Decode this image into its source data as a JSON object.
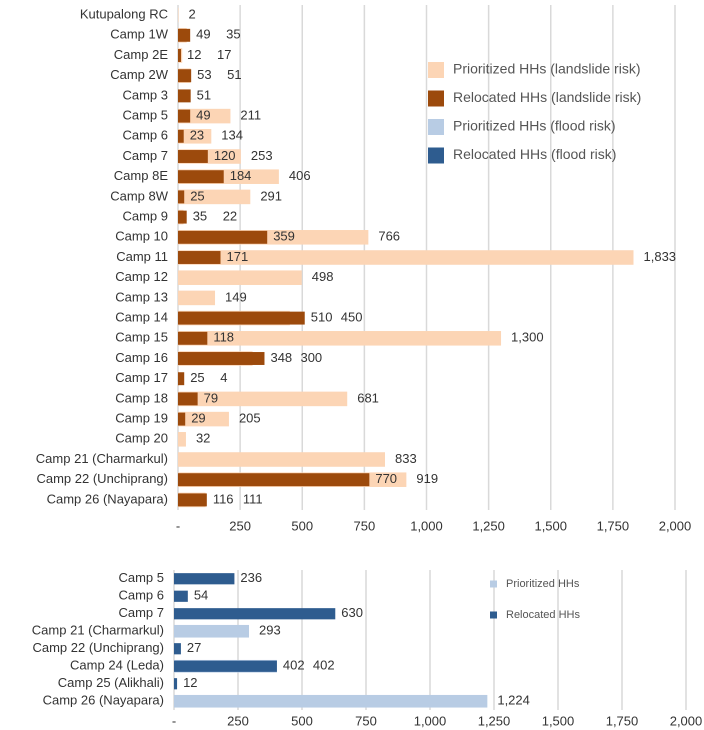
{
  "chart_data": [
    {
      "type": "bar",
      "categories": [
        "Kutupalong RC",
        "Camp 1W",
        "Camp 2E",
        "Camp 2W",
        "Camp 3",
        "Camp 5",
        "Camp 6",
        "Camp 7",
        "Camp 8E",
        "Camp 8W",
        "Camp 9",
        "Camp 10",
        "Camp 11",
        "Camp 12",
        "Camp 13",
        "Camp 14",
        "Camp 15",
        "Camp 16",
        "Camp 17",
        "Camp 18",
        "Camp 19",
        "Camp 20",
        "Camp 21 (Charmarkul)",
        "Camp 22 (Unchiprang)",
        "Camp 26 (Nayapara)"
      ],
      "series": [
        {
          "name": "Prioritized HHs (landslide risk)",
          "color": "#fcd5b5",
          "values": [
            2,
            35,
            17,
            51,
            null,
            211,
            134,
            253,
            406,
            291,
            22,
            766,
            1833,
            498,
            149,
            450,
            1300,
            300,
            4,
            681,
            205,
            32,
            833,
            919,
            111
          ],
          "value_labels": [
            "2",
            "35",
            "17",
            "51",
            null,
            "211",
            "134",
            "253",
            "406",
            "291",
            "22",
            "766",
            "1,833",
            "498",
            "149",
            "450",
            "1,300",
            "300",
            "4",
            "681",
            "205",
            "32",
            "833",
            "919",
            "111"
          ]
        },
        {
          "name": "Relocated HHs (landslide risk)",
          "color": "#9c4a0c",
          "values": [
            null,
            49,
            12,
            53,
            51,
            49,
            23,
            120,
            184,
            25,
            35,
            359,
            171,
            null,
            null,
            510,
            118,
            348,
            25,
            79,
            29,
            null,
            null,
            770,
            116
          ]
        },
        {
          "name": "Prioritized HHs (flood risk)",
          "color": "#b8cce4",
          "values": [
            null,
            null,
            null,
            null,
            null,
            null,
            null,
            null,
            null,
            null,
            null,
            null,
            null,
            null,
            null,
            null,
            null,
            null,
            null,
            null,
            null,
            null,
            null,
            null,
            null
          ]
        },
        {
          "name": "Relocated HHs (flood risk)",
          "color": "#2e5c8f",
          "values": [
            null,
            null,
            null,
            null,
            null,
            null,
            null,
            null,
            null,
            null,
            null,
            null,
            null,
            null,
            null,
            null,
            null,
            null,
            null,
            null,
            null,
            null,
            null,
            null,
            null
          ]
        }
      ],
      "xlim": [
        0,
        2000
      ],
      "xticks": [
        {
          "value": 0,
          "label": "-"
        },
        250,
        500,
        750,
        {
          "value": 1000,
          "label": "1,000"
        },
        {
          "value": 1250,
          "label": "1,250"
        },
        {
          "value": 1500,
          "label": "1,500"
        },
        {
          "value": 1750,
          "label": "1,750"
        },
        {
          "value": 2000,
          "label": "2,000"
        }
      ],
      "grid": true,
      "legend": "upper right"
    },
    {
      "type": "bar",
      "categories": [
        "Camp 5",
        "Camp 6",
        "Camp 7",
        "Camp 21 (Charmarkul)",
        "Camp 22 (Unchiprang)",
        "Camp 24 (Leda)",
        "Camp 25 (Alikhali)",
        "Camp 26 (Nayapara)"
      ],
      "series": [
        {
          "name": "Prioritized HHs",
          "color": "#b8cce4",
          "values": [
            null,
            null,
            null,
            293,
            null,
            402,
            null,
            1224
          ],
          "value_labels": [
            null,
            null,
            null,
            "293",
            null,
            "402",
            null,
            "1,224"
          ]
        },
        {
          "name": "Relocated HHs",
          "color": "#2e5c8f",
          "values": [
            236,
            54,
            630,
            null,
            27,
            402,
            12,
            null
          ]
        }
      ],
      "xlim": [
        0,
        2000
      ],
      "xticks": [
        {
          "value": 0,
          "label": "-"
        },
        250,
        500,
        750,
        {
          "value": 1000,
          "label": "1,000"
        },
        {
          "value": 1250,
          "label": "1,250"
        },
        {
          "value": 1500,
          "label": "1,500"
        },
        {
          "value": 1750,
          "label": "1,750"
        },
        {
          "value": 2000,
          "label": "2,000"
        }
      ],
      "grid": true,
      "legend": "upper right"
    }
  ]
}
